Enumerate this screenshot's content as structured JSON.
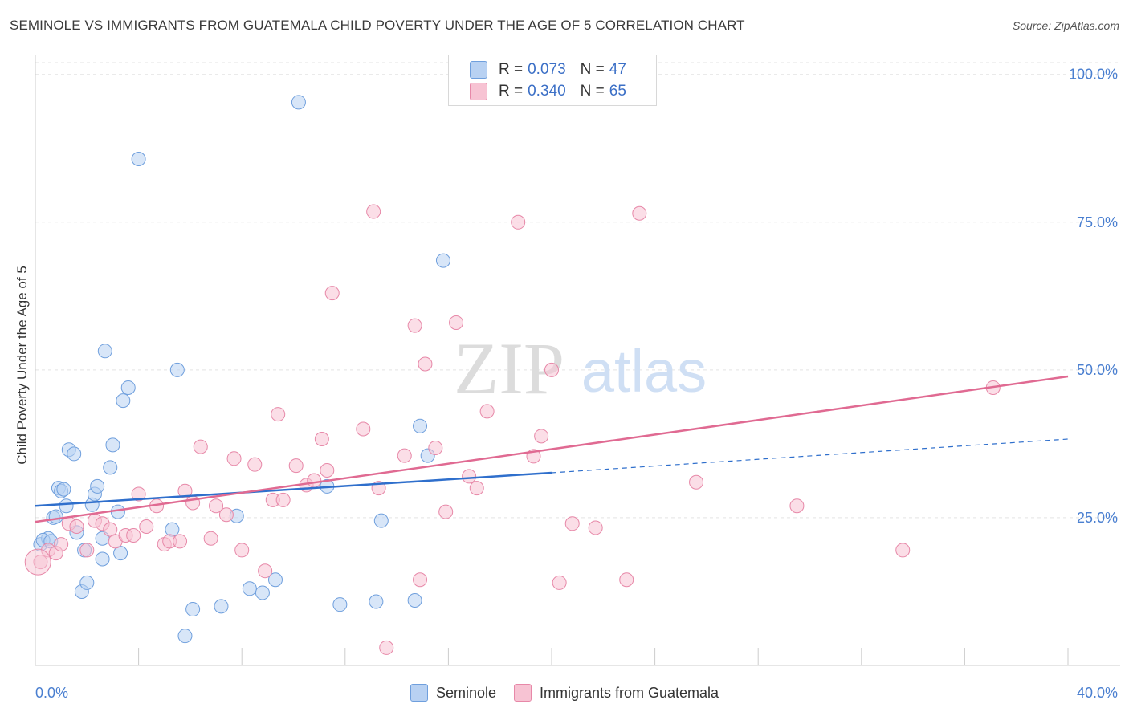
{
  "title": "SEMINOLE VS IMMIGRANTS FROM GUATEMALA CHILD POVERTY UNDER THE AGE OF 5 CORRELATION CHART",
  "source": "Source: ZipAtlas.com",
  "watermark": {
    "zip": "ZIP",
    "atlas": "atlas"
  },
  "legend": {
    "r_label": "R =",
    "n_label": "N =",
    "seminole": {
      "r": "0.073",
      "n": "47"
    },
    "guatemala": {
      "r": "0.340",
      "n": "65"
    }
  },
  "chart_data": {
    "type": "scatter",
    "title": "SEMINOLE VS IMMIGRANTS FROM GUATEMALA CHILD POVERTY UNDER THE AGE OF 5 CORRELATION CHART",
    "xlabel": "",
    "ylabel": "Child Poverty Under the Age of 5",
    "xlim": [
      0,
      40
    ],
    "ylim": [
      0,
      102
    ],
    "x_tick_labels": [
      {
        "value": 0,
        "label": "0.0%"
      },
      {
        "value": 40,
        "label": "40.0%"
      }
    ],
    "y_tick_labels": [
      {
        "value": 25,
        "label": "25.0%"
      },
      {
        "value": 50,
        "label": "50.0%"
      },
      {
        "value": 75,
        "label": "75.0%"
      },
      {
        "value": 100,
        "label": "100.0%"
      }
    ],
    "grid": true,
    "legend_position": "top-center",
    "series": [
      {
        "name": "Seminole",
        "color": "#6f9fdd",
        "fill": "#b8d1f2",
        "trend": {
          "x0": 0,
          "y0": 27.0,
          "x1": 20,
          "y1": 32.6,
          "dashed_to_x": 40,
          "dashed_to_y": 38.3
        },
        "points": [
          [
            0.2,
            20.5
          ],
          [
            0.5,
            21.5
          ],
          [
            0.7,
            25.0
          ],
          [
            0.9,
            30.0
          ],
          [
            1.0,
            29.5
          ],
          [
            1.2,
            27.0
          ],
          [
            1.3,
            36.5
          ],
          [
            1.5,
            35.8
          ],
          [
            1.6,
            22.5
          ],
          [
            1.8,
            12.5
          ],
          [
            1.9,
            19.5
          ],
          [
            2.0,
            14.0
          ],
          [
            2.2,
            27.2
          ],
          [
            2.3,
            29.0
          ],
          [
            2.4,
            30.3
          ],
          [
            2.6,
            21.5
          ],
          [
            2.6,
            18.0
          ],
          [
            2.7,
            53.2
          ],
          [
            2.9,
            33.5
          ],
          [
            3.0,
            37.3
          ],
          [
            3.2,
            26.0
          ],
          [
            3.3,
            19.0
          ],
          [
            3.4,
            44.8
          ],
          [
            3.6,
            47.0
          ],
          [
            4.0,
            85.7
          ],
          [
            5.3,
            23.0
          ],
          [
            5.5,
            50.0
          ],
          [
            5.8,
            5.0
          ],
          [
            6.1,
            9.5
          ],
          [
            7.2,
            10.0
          ],
          [
            7.8,
            25.3
          ],
          [
            8.3,
            13.0
          ],
          [
            8.8,
            12.3
          ],
          [
            9.3,
            14.5
          ],
          [
            10.2,
            95.3
          ],
          [
            11.3,
            30.3
          ],
          [
            11.8,
            10.3
          ],
          [
            13.2,
            10.8
          ],
          [
            13.4,
            24.5
          ],
          [
            14.7,
            11.0
          ],
          [
            14.9,
            40.5
          ],
          [
            15.2,
            35.5
          ],
          [
            15.8,
            68.5
          ],
          [
            0.3,
            21.2
          ],
          [
            0.6,
            21.0
          ],
          [
            0.8,
            25.2
          ],
          [
            1.1,
            29.8
          ]
        ]
      },
      {
        "name": "Immigrants from Guatemala",
        "color": "#e788a8",
        "fill": "#f7c3d3",
        "trend": {
          "x0": 0,
          "y0": 24.3,
          "x1": 40,
          "y1": 48.9
        },
        "points": [
          [
            0.2,
            17.5
          ],
          [
            0.5,
            19.5
          ],
          [
            0.8,
            19.0
          ],
          [
            1.0,
            20.5
          ],
          [
            1.3,
            24.0
          ],
          [
            1.6,
            23.5
          ],
          [
            2.0,
            19.5
          ],
          [
            2.3,
            24.5
          ],
          [
            2.6,
            24.0
          ],
          [
            2.9,
            23.0
          ],
          [
            3.1,
            21.0
          ],
          [
            3.5,
            22.0
          ],
          [
            3.8,
            22.0
          ],
          [
            4.0,
            29.0
          ],
          [
            4.3,
            23.5
          ],
          [
            4.7,
            27.0
          ],
          [
            5.0,
            20.5
          ],
          [
            5.2,
            21.0
          ],
          [
            5.6,
            21.0
          ],
          [
            5.8,
            29.5
          ],
          [
            6.1,
            27.5
          ],
          [
            6.4,
            37.0
          ],
          [
            6.8,
            21.5
          ],
          [
            7.0,
            27.0
          ],
          [
            7.4,
            25.5
          ],
          [
            7.7,
            35.0
          ],
          [
            8.0,
            19.5
          ],
          [
            8.5,
            34.0
          ],
          [
            8.9,
            16.0
          ],
          [
            9.2,
            28.0
          ],
          [
            9.4,
            42.5
          ],
          [
            9.6,
            28.0
          ],
          [
            10.1,
            33.8
          ],
          [
            10.5,
            30.5
          ],
          [
            10.8,
            31.3
          ],
          [
            11.1,
            38.3
          ],
          [
            11.3,
            33.0
          ],
          [
            11.5,
            63.0
          ],
          [
            12.7,
            40.0
          ],
          [
            13.1,
            76.8
          ],
          [
            13.3,
            30.0
          ],
          [
            13.6,
            3.0
          ],
          [
            14.3,
            35.5
          ],
          [
            14.7,
            57.5
          ],
          [
            14.9,
            14.5
          ],
          [
            15.1,
            51.0
          ],
          [
            15.5,
            36.8
          ],
          [
            15.9,
            26.0
          ],
          [
            16.3,
            58.0
          ],
          [
            16.8,
            32.0
          ],
          [
            17.1,
            30.0
          ],
          [
            17.5,
            43.0
          ],
          [
            18.7,
            75.0
          ],
          [
            19.3,
            35.4
          ],
          [
            19.6,
            38.8
          ],
          [
            20.0,
            50.0
          ],
          [
            20.3,
            14.0
          ],
          [
            20.8,
            24.0
          ],
          [
            21.7,
            23.3
          ],
          [
            22.9,
            14.5
          ],
          [
            23.4,
            76.5
          ],
          [
            25.6,
            31.0
          ],
          [
            29.5,
            27.0
          ],
          [
            33.6,
            19.5
          ],
          [
            37.1,
            47.0
          ]
        ]
      }
    ]
  }
}
